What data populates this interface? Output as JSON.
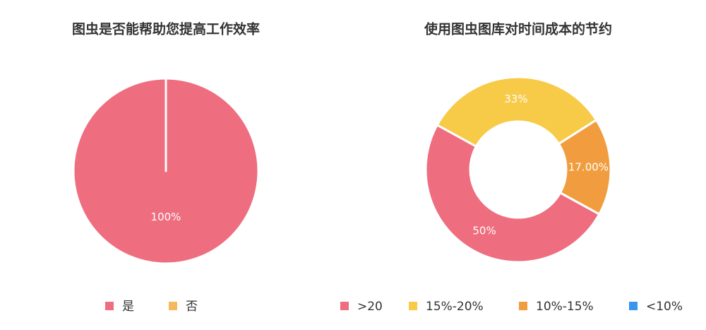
{
  "chart_data": [
    {
      "type": "pie",
      "title": "图虫是否能帮助您提高工作效率",
      "categories": [
        "是",
        "否"
      ],
      "values": [
        100,
        0
      ],
      "value_labels": [
        "100%",
        null
      ],
      "colors": [
        "#ee6d7f",
        "#f5b95d"
      ]
    },
    {
      "type": "donut",
      "title": "使用图虫图库对时间成本的节约",
      "categories": [
        ">20",
        "15%-20%",
        "10%-15%",
        "<10%"
      ],
      "values": [
        50,
        33,
        17,
        0
      ],
      "value_labels": [
        "50%",
        "33%",
        "17.00%",
        null
      ],
      "colors": [
        "#ee6d7f",
        "#f7ca48",
        "#f19d3f",
        "#3a95ee"
      ]
    }
  ]
}
